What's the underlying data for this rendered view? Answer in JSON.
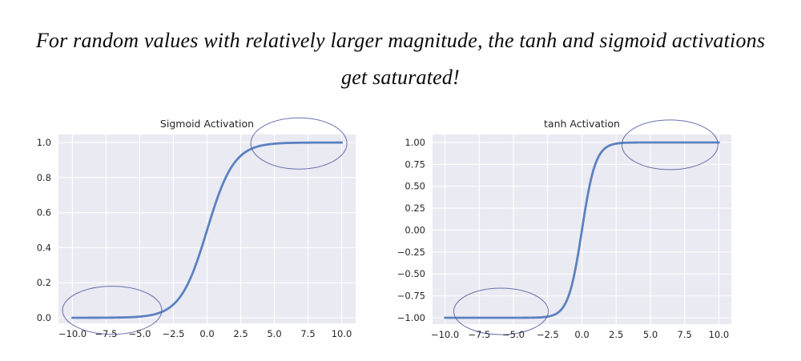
{
  "headline": {
    "line1": "For random values with relatively larger magnitude, the tanh and sigmoid activations",
    "line2": "get saturated!"
  },
  "colors": {
    "page_bg": "#ffffff",
    "plot_bg": "#eaeaf2",
    "grid": "#ffffff",
    "curve": "#5b82c0",
    "annotation": "#4f5aa0",
    "tick_text": "#262626",
    "title_text": "#262626",
    "headline_text": "#0a0a0a"
  },
  "chart_data": [
    {
      "type": "line",
      "title": "Sigmoid Activation",
      "function": "sigmoid",
      "x_range": [
        -10,
        10
      ],
      "xlim": [
        -11.04,
        11.04
      ],
      "ylim": [
        -0.032,
        1.046
      ],
      "xticks": [
        -10,
        -7.5,
        -5,
        -2.5,
        0,
        2.5,
        5,
        7.5,
        10
      ],
      "xtick_labels": [
        "−10.0",
        "−7.5",
        "−5.0",
        "−2.5",
        "0.0",
        "2.5",
        "5.0",
        "7.5",
        "10.0"
      ],
      "yticks": [
        0.0,
        0.2,
        0.4,
        0.6,
        0.8,
        1.0
      ],
      "ytick_labels": [
        "0.0",
        "0.2",
        "0.4",
        "0.6",
        "0.8",
        "1.0"
      ],
      "xlabel": "",
      "ylabel": "",
      "grid": true,
      "legend": "none",
      "sample_points": {
        "x": [
          -10,
          -7.5,
          -5,
          -2.5,
          -1.25,
          0,
          1.25,
          2.5,
          5,
          7.5,
          10
        ],
        "y": [
          0.0,
          0.0006,
          0.0067,
          0.0759,
          0.2227,
          0.5,
          0.7773,
          0.9241,
          0.9933,
          0.9994,
          1.0
        ]
      },
      "annotations": [
        {
          "shape": "ellipse",
          "cx": 6.82,
          "cy": 0.995,
          "rx": 3.57,
          "ry": 0.146
        },
        {
          "shape": "ellipse",
          "cx": -7.05,
          "cy": 0.043,
          "rx": 3.69,
          "ry": 0.137
        }
      ]
    },
    {
      "type": "line",
      "title": "tanh Activation",
      "function": "tanh",
      "x_range": [
        -10,
        10
      ],
      "xlim": [
        -10.91,
        10.91
      ],
      "ylim": [
        -1.073,
        1.091
      ],
      "xticks": [
        -10,
        -7.5,
        -5,
        -2.5,
        0,
        2.5,
        5,
        7.5,
        10
      ],
      "xtick_labels": [
        "−10.0",
        "−7.5",
        "−5.0",
        "−2.5",
        "0.0",
        "2.5",
        "5.0",
        "7.5",
        "10.0"
      ],
      "yticks": [
        -1.0,
        -0.75,
        -0.5,
        -0.25,
        0.0,
        0.25,
        0.5,
        0.75,
        1.0
      ],
      "ytick_labels": [
        "−1.00",
        "−0.75",
        "−0.50",
        "−0.25",
        "0.00",
        "0.25",
        "0.50",
        "0.75",
        "1.00"
      ],
      "xlabel": "",
      "ylabel": "",
      "grid": true,
      "legend": "none",
      "sample_points": {
        "x": [
          -10,
          -7.5,
          -5,
          -2.5,
          -1.25,
          0,
          1.25,
          2.5,
          5,
          7.5,
          10
        ],
        "y": [
          -1.0,
          -1.0,
          -0.9999,
          -0.9866,
          -0.8483,
          0.0,
          0.8483,
          0.9866,
          0.9999,
          1.0,
          1.0
        ]
      },
      "annotations": [
        {
          "shape": "ellipse",
          "cx": 6.43,
          "cy": 0.973,
          "rx": 3.51,
          "ry": 0.283
        },
        {
          "shape": "ellipse",
          "cx": -5.91,
          "cy": -0.927,
          "rx": 3.45,
          "ry": 0.265
        }
      ]
    }
  ]
}
